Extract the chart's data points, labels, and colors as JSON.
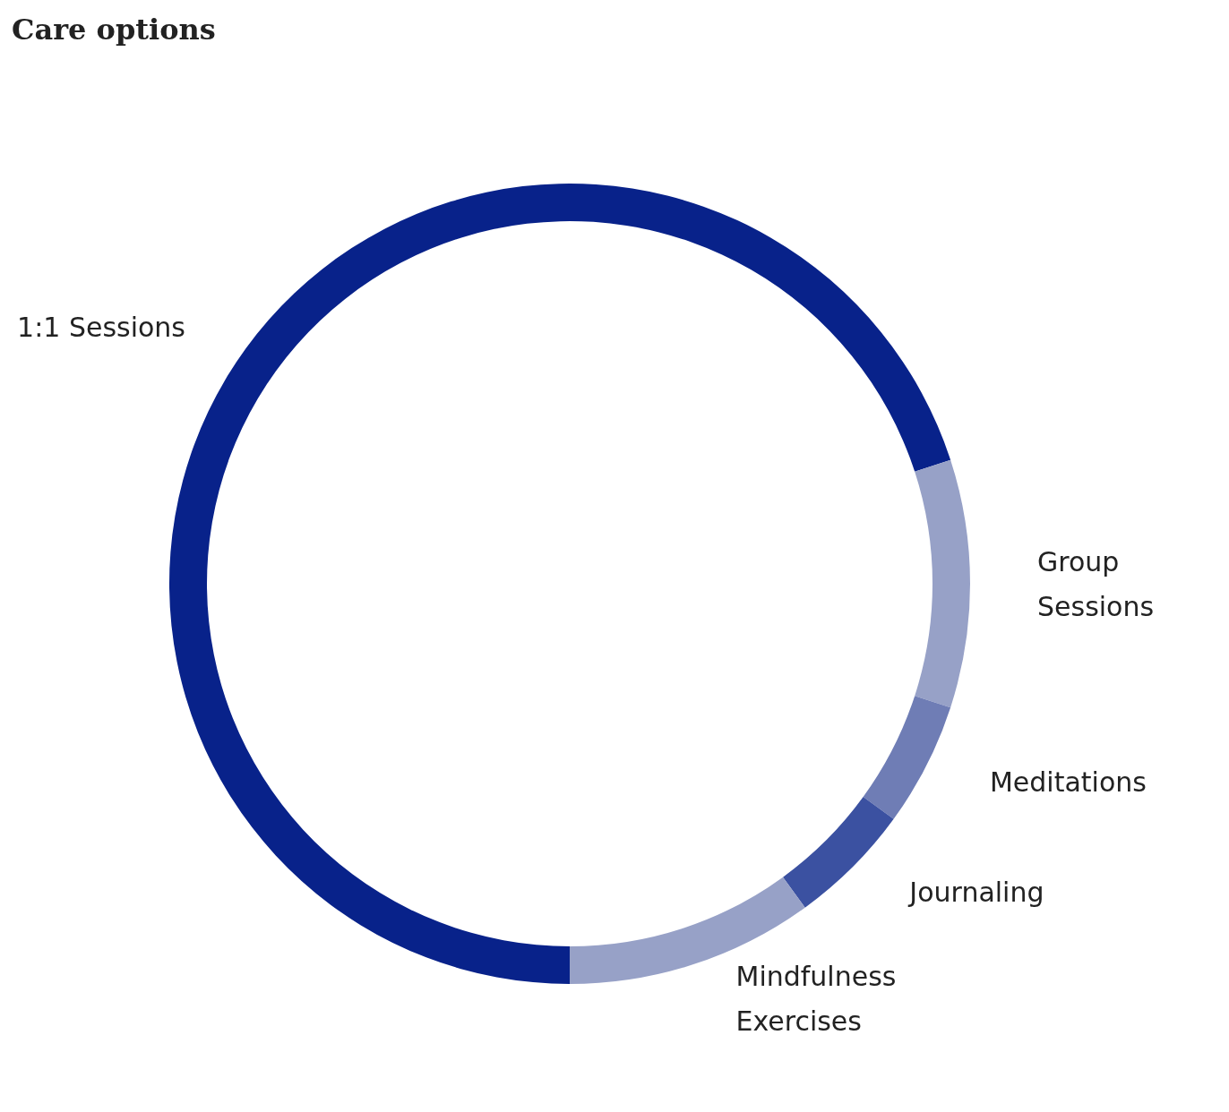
{
  "chart_data": {
    "type": "donut",
    "title": "Care options",
    "categories": [
      "1:1 Sessions",
      "Group Sessions",
      "Meditations",
      "Journaling",
      "Mindfulness Exercises"
    ],
    "values": [
      70,
      10,
      5,
      5,
      10
    ],
    "colors": [
      "#08228a",
      "#97a1c7",
      "#6f7db5",
      "#3b51a1",
      "#97a1c7"
    ]
  }
}
